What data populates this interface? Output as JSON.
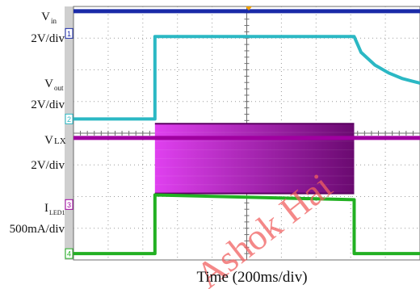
{
  "chart_data": {
    "type": "line",
    "xlabel": "Time (200ms/div)",
    "x_divisions": 10,
    "y_divisions": 8,
    "grid": true,
    "x_units": "div",
    "x_range": [
      0,
      10
    ],
    "y_units": "div",
    "y_range": [
      -4,
      4
    ],
    "channel_labels": [
      {
        "name": "V",
        "sub": "in",
        "scale": "2V/div"
      },
      {
        "name": "V",
        "sub": "out",
        "scale": "2V/div"
      },
      {
        "name": "V",
        "sub": "LX",
        "scale": "2V/div"
      },
      {
        "name": "I",
        "sub": "LED1",
        "scale": "500mA/div"
      }
    ],
    "channel_markers": [
      "1",
      "2",
      "3",
      "4"
    ],
    "series": [
      {
        "channel": 1,
        "color": "#1a2aa8",
        "points": [
          [
            0,
            3.85
          ],
          [
            10,
            3.85
          ]
        ]
      },
      {
        "channel": 2,
        "color": "#2bb8c4",
        "points": [
          [
            0,
            0.45
          ],
          [
            2.35,
            0.45
          ],
          [
            2.35,
            3.05
          ],
          [
            8.1,
            3.05
          ],
          [
            8.3,
            2.55
          ],
          [
            8.7,
            2.15
          ],
          [
            9.1,
            1.9
          ],
          [
            9.5,
            1.72
          ],
          [
            10,
            1.58
          ]
        ]
      },
      {
        "channel": 3,
        "color": "#a000a0",
        "points": [
          [
            0,
            -0.15
          ],
          [
            2.35,
            -0.15
          ],
          [
            8.1,
            -0.15
          ],
          [
            10,
            -0.15
          ]
        ],
        "switching_band": {
          "x_start": 2.35,
          "x_end": 8.1,
          "high": 0.3,
          "low": -1.9,
          "color_start": "#e040f0",
          "color_end": "#6a0a70"
        }
      },
      {
        "channel": 4,
        "color": "#22b022",
        "points": [
          [
            0,
            -3.8
          ],
          [
            2.35,
            -3.8
          ],
          [
            2.35,
            -1.95
          ],
          [
            8.1,
            -2.1
          ],
          [
            8.1,
            -3.8
          ],
          [
            10,
            -3.8
          ]
        ]
      }
    ]
  },
  "colors": {
    "grid": "#9a9a9a",
    "frame": "#6c6c6c",
    "sidebar": "#cfcfcf",
    "trigger_marker": "#f0a000",
    "watermark": "#f06060"
  },
  "watermark": {
    "text": "Ashok Hai"
  }
}
